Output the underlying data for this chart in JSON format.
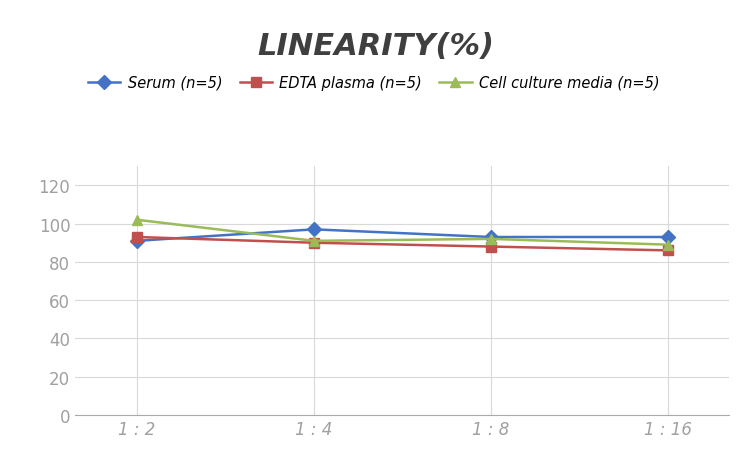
{
  "title": "LINEARITY(%)",
  "x_labels": [
    "1 : 2",
    "1 : 4",
    "1 : 8",
    "1 : 16"
  ],
  "x_positions": [
    0,
    1,
    2,
    3
  ],
  "series": [
    {
      "label": "Serum (n=5)",
      "values": [
        91,
        97,
        93,
        93
      ],
      "color": "#4472C4",
      "marker": "D",
      "marker_color": "#4472C4",
      "linewidth": 1.8
    },
    {
      "label": "EDTA plasma (n=5)",
      "values": [
        93,
        90,
        88,
        86
      ],
      "color": "#C0504D",
      "marker": "s",
      "marker_color": "#C0504D",
      "linewidth": 1.8
    },
    {
      "label": "Cell culture media (n=5)",
      "values": [
        102,
        91,
        92,
        89
      ],
      "color": "#9BBB59",
      "marker": "^",
      "marker_color": "#9BBB59",
      "linewidth": 1.8
    }
  ],
  "ylim": [
    0,
    130
  ],
  "yticks": [
    0,
    20,
    40,
    60,
    80,
    100,
    120
  ],
  "grid_color": "#D9D9D9",
  "background_color": "#FFFFFF",
  "title_fontsize": 22,
  "legend_fontsize": 10.5,
  "tick_fontsize": 12,
  "tick_color": "#A0A0A0"
}
